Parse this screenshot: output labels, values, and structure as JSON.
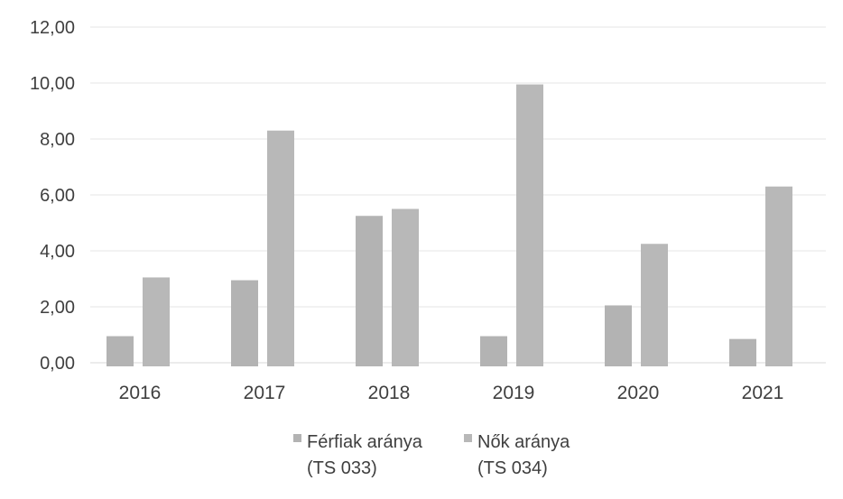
{
  "chart_data": {
    "type": "bar",
    "title": "",
    "xlabel": "",
    "ylabel": "",
    "categories": [
      "2016",
      "2017",
      "2018",
      "2019",
      "2020",
      "2021"
    ],
    "series": [
      {
        "name": "Férfiak aránya (TS 033)",
        "name_lines": [
          "Férfiak aránya",
          "(TS 033)"
        ],
        "values": [
          0.95,
          2.95,
          5.25,
          0.95,
          2.05,
          0.85
        ],
        "color": "#b3b3b3"
      },
      {
        "name": "Nők aránya (TS 034)",
        "name_lines": [
          "Nők aránya",
          "(TS 034)"
        ],
        "values": [
          3.05,
          8.3,
          5.5,
          9.95,
          4.25,
          6.3
        ],
        "color": "#b8b8b8"
      }
    ],
    "ylim": [
      0,
      12
    ],
    "yticks": [
      "0,00",
      "2,00",
      "4,00",
      "6,00",
      "8,00",
      "10,00",
      "12,00"
    ],
    "ytick_values": [
      0,
      2,
      4,
      6,
      8,
      10,
      12
    ],
    "grid": true,
    "legend_position": "bottom"
  },
  "colors": {
    "grid": "#e6e6e6",
    "axis": "#d9d9d9",
    "text": "#3f3f3f"
  }
}
